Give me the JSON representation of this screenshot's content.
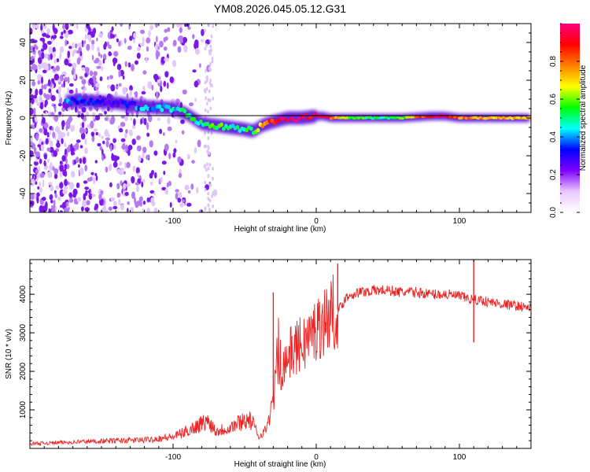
{
  "page_title": "YM08.2026.045.05.12.G31",
  "chart_data": [
    {
      "type": "heatmap",
      "title": "YM08.2026.045.05.12.G31",
      "xlabel": "Height of straight line (km)",
      "ylabel": "Frequency (Hz)",
      "xlim": [
        -200,
        150
      ],
      "ylim": [
        -50,
        50
      ],
      "xticks": [
        -100,
        0,
        100
      ],
      "xtick_labels": [
        "-100",
        "0",
        "100"
      ],
      "yticks": [
        -40,
        -20,
        0,
        20,
        40
      ],
      "ytick_labels": [
        "-40",
        "-20",
        "0",
        "20",
        "40"
      ],
      "colorbar": {
        "label": "Normalized spectral amplitude",
        "range": [
          0,
          1
        ],
        "ticks": [
          0.0,
          0.2,
          0.4,
          0.6,
          0.8
        ],
        "tick_labels": [
          "0.0",
          "0.2",
          "0.4",
          "0.6",
          "0.8"
        ],
        "colormap": [
          "#ffffff",
          "#e9c8ff",
          "#8000ff",
          "#0000ff",
          "#00ffff",
          "#00ff00",
          "#ffff00",
          "#ff8000",
          "#ff0000",
          "#ff0080"
        ]
      },
      "ridge": {
        "x": [
          -172,
          -160,
          -140,
          -120,
          -100,
          -90,
          -80,
          -70,
          -60,
          -50,
          -44,
          -38,
          -30,
          -20,
          -10,
          0,
          5,
          10,
          20,
          40,
          60,
          80,
          90,
          100,
          120,
          150
        ],
        "freq": [
          9,
          9,
          8,
          6,
          5,
          2,
          -3,
          -4,
          -5,
          -6,
          -7,
          -4,
          -2,
          0,
          0,
          1,
          1,
          0,
          0,
          0,
          0,
          1,
          1,
          0,
          0,
          0
        ],
        "amplitude": [
          0.35,
          0.3,
          0.25,
          0.4,
          0.45,
          0.5,
          0.5,
          0.55,
          0.5,
          0.5,
          0.55,
          0.7,
          0.9,
          0.95,
          0.95,
          0.9,
          0.92,
          0.85,
          0.6,
          0.5,
          0.55,
          0.95,
          0.95,
          0.8,
          0.7,
          0.7
        ]
      }
    },
    {
      "type": "line",
      "xlabel": "Height of straight line (km)",
      "ylabel": "SNR (10 * v/v)",
      "xlim": [
        -200,
        150
      ],
      "ylim": [
        0,
        4900
      ],
      "xticks": [
        -100,
        0,
        100
      ],
      "xtick_labels": [
        "-100",
        "0",
        "100"
      ],
      "yticks": [
        1000,
        2000,
        3000,
        4000
      ],
      "ytick_labels": [
        "1000",
        "2000",
        "3000",
        "4000"
      ],
      "series": [
        {
          "name": "SNR",
          "color": "#ee2222",
          "x": [
            -200,
            -180,
            -160,
            -140,
            -120,
            -100,
            -90,
            -80,
            -75,
            -70,
            -60,
            -50,
            -45,
            -40,
            -35,
            -30,
            -28,
            -25,
            -20,
            -15,
            -10,
            -5,
            0,
            5,
            10,
            15,
            18,
            20,
            25,
            30,
            40,
            50,
            60,
            70,
            80,
            90,
            100,
            105,
            110,
            115,
            120,
            130,
            140,
            150
          ],
          "values": [
            120,
            150,
            180,
            200,
            220,
            300,
            450,
            650,
            700,
            450,
            550,
            750,
            700,
            300,
            500,
            1200,
            1900,
            2000,
            2400,
            2600,
            2700,
            2900,
            3100,
            3300,
            3500,
            3600,
            3700,
            3900,
            4000,
            4050,
            4100,
            4100,
            4050,
            4050,
            4000,
            4000,
            3950,
            3900,
            3850,
            3850,
            3800,
            3750,
            3700,
            3650
          ],
          "spikes": [
            {
              "x": -30,
              "value": 4050
            },
            {
              "x": 15,
              "value": 4800
            },
            {
              "x": 110,
              "value": 4900
            },
            {
              "x": 110,
              "value": 2750
            }
          ]
        }
      ]
    }
  ]
}
